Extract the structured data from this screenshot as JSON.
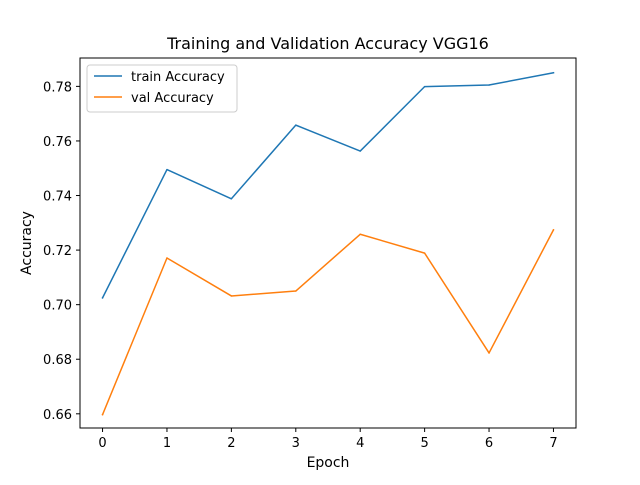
{
  "chart_data": {
    "type": "line",
    "title": "Training and Validation Accuracy VGG16",
    "xlabel": "Epoch",
    "ylabel": "Accuracy",
    "x": [
      0,
      1,
      2,
      3,
      4,
      5,
      6,
      7
    ],
    "xlim": [
      -0.35,
      7.35
    ],
    "ylim": [
      0.6548,
      0.7904
    ],
    "xticks": [
      "0",
      "1",
      "2",
      "3",
      "4",
      "5",
      "6",
      "7"
    ],
    "yticks": [
      "0.66",
      "0.68",
      "0.70",
      "0.72",
      "0.74",
      "0.76",
      "0.78"
    ],
    "grid": false,
    "legend_position": "top-left",
    "series": [
      {
        "name": "train Accuracy",
        "color": "#1f77b4",
        "values": [
          0.7025,
          0.7495,
          0.7388,
          0.7658,
          0.7563,
          0.7799,
          0.7805,
          0.785
        ]
      },
      {
        "name": "val Accuracy",
        "color": "#ff7f0e",
        "values": [
          0.6597,
          0.7171,
          0.7032,
          0.705,
          0.7258,
          0.7189,
          0.6823,
          0.7274
        ]
      }
    ]
  }
}
